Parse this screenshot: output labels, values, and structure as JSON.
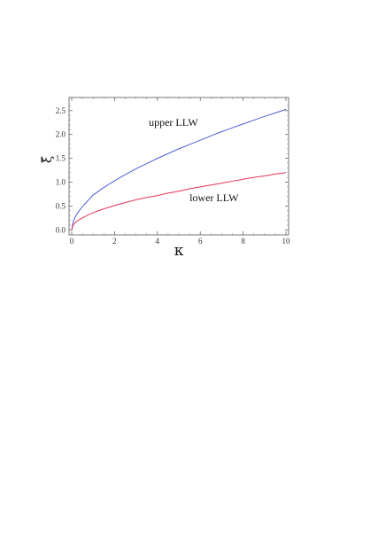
{
  "chart_data": {
    "type": "line",
    "xlabel": "κ",
    "ylabel": "ξ̃",
    "xlim": [
      0,
      10
    ],
    "ylim": [
      -0.05,
      2.72
    ],
    "grid": false,
    "x_ticks": [
      0,
      2,
      4,
      6,
      8,
      10
    ],
    "x_tick_labels": [
      "0",
      "2",
      "4",
      "6",
      "8",
      "10"
    ],
    "y_ticks": [
      0.0,
      0.5,
      1.0,
      1.5,
      2.0,
      2.5
    ],
    "y_tick_labels": [
      "0.0",
      "0.5",
      "1.0",
      "1.5",
      "2.0",
      "2.5"
    ],
    "x": [
      0,
      0.05,
      0.1,
      0.2,
      0.3,
      0.5,
      0.75,
      1,
      1.5,
      2,
      2.5,
      3,
      3.5,
      4,
      4.5,
      5,
      5.5,
      6,
      6.5,
      7,
      7.5,
      8,
      8.5,
      9,
      9.5,
      10
    ],
    "series": [
      {
        "color": "#4a5fd6",
        "values": [
          0,
          0.13,
          0.21,
          0.3,
          0.37,
          0.49,
          0.61,
          0.73,
          0.89,
          1.03,
          1.16,
          1.28,
          1.39,
          1.5,
          1.6,
          1.7,
          1.79,
          1.88,
          1.97,
          2.06,
          2.14,
          2.22,
          2.3,
          2.38,
          2.45,
          2.53
        ]
      },
      {
        "color": "#e8335a",
        "values": [
          0,
          0.08,
          0.12,
          0.17,
          0.2,
          0.25,
          0.31,
          0.36,
          0.44,
          0.51,
          0.57,
          0.63,
          0.68,
          0.72,
          0.77,
          0.81,
          0.86,
          0.9,
          0.94,
          0.98,
          1.02,
          1.06,
          1.1,
          1.13,
          1.17,
          1.2
        ]
      }
    ],
    "annotations": [
      {
        "text": "upper LLW",
        "x": 3.6,
        "y": 2.18
      },
      {
        "text": "lower LLW",
        "x": 5.5,
        "y": 0.6
      }
    ]
  }
}
